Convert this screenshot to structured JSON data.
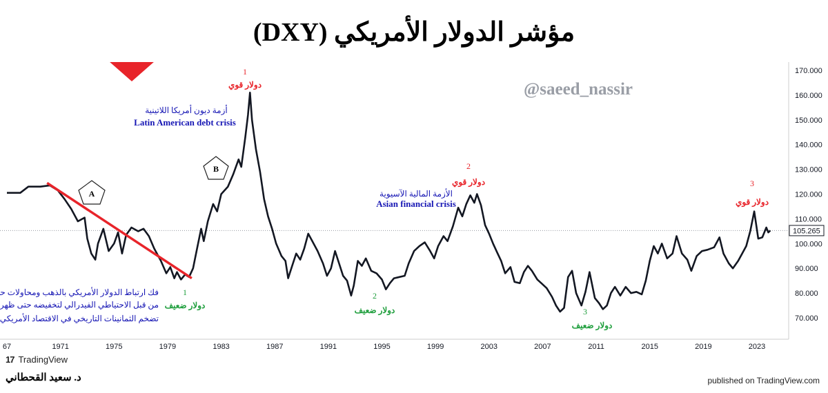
{
  "title": "مؤشر الدولار الأمريكي (DXY)",
  "watermark": "@saeed_nassir",
  "footer": {
    "brand": "TradingView",
    "author": "د. سعيد القحطاني",
    "published": "published on TradingView.com"
  },
  "colors": {
    "line": "#131722",
    "trend": "#e8242a",
    "arrow": "#e8242a",
    "strong": "#e8242a",
    "weak": "#1e9e3c",
    "blue": "#1616b4"
  },
  "annotations": {
    "s1_num": "1",
    "s1_text": "دولار قوي",
    "s2_num": "2",
    "s2_text": "دولار قوي",
    "s3_num": "3",
    "s3_text": "دولار قوي",
    "w1_num": "1",
    "w1_text": "دولار ضعيف",
    "w2_num": "2",
    "w2_text": "دولار ضعيف",
    "w3_num": "3",
    "w3_text": "دولار ضعيف",
    "latam_ar": "أزمة ديون أمريكا اللاتينية",
    "latam_en": "Latin American debt crisis",
    "asia_ar": "الأزمة المالية الآسيوية",
    "asia_en": "Asian financial crisis",
    "note_line1": "فك ارتباط الدولار الأمريكي بالذهب ومحاولات حثيثة",
    "note_line2": "من قبل الاحتياطي الفيدرالي لتخفيضه حتى ظهر",
    "note_line3": "تضخم الثمانينات التاريخي في الاقتصاد الأمريكي",
    "label_a": "A",
    "label_b": "B"
  },
  "chart_data": {
    "type": "line",
    "title": "مؤشر الدولار الأمريكي (DXY)",
    "xlabel": "",
    "ylabel": "",
    "x_ticks": [
      "67",
      "1971",
      "1975",
      "1979",
      "1983",
      "1987",
      "1991",
      "1995",
      "1999",
      "2003",
      "2007",
      "2011",
      "2015",
      "2019",
      "2023"
    ],
    "y_ticks": [
      "70.000",
      "80.000",
      "90.000",
      "100.000",
      "110.000",
      "120.000",
      "130.000",
      "140.000",
      "150.000",
      "160.000",
      "170.000"
    ],
    "xlim": [
      1967,
      2025
    ],
    "ylim": [
      65,
      172
    ],
    "last_value": "105.265",
    "series": [
      {
        "values": [
          [
            1967.0,
            120.5
          ],
          [
            1968.0,
            120.5
          ],
          [
            1968.6,
            123.0
          ],
          [
            1969.5,
            123.0
          ],
          [
            1970.2,
            123.5
          ],
          [
            1970.8,
            121.5
          ],
          [
            1971.3,
            118.0
          ],
          [
            1971.8,
            114.0
          ],
          [
            1972.3,
            109.0
          ],
          [
            1972.8,
            110.5
          ],
          [
            1973.0,
            102.0
          ],
          [
            1973.3,
            96.0
          ],
          [
            1973.6,
            93.5
          ],
          [
            1973.8,
            100.0
          ],
          [
            1974.2,
            106.0
          ],
          [
            1974.6,
            97.0
          ],
          [
            1975.0,
            100.0
          ],
          [
            1975.3,
            104.5
          ],
          [
            1975.6,
            96.0
          ],
          [
            1975.9,
            103.5
          ],
          [
            1976.3,
            106.5
          ],
          [
            1976.8,
            105.0
          ],
          [
            1977.2,
            106.0
          ],
          [
            1977.6,
            103.0
          ],
          [
            1978.0,
            98.0
          ],
          [
            1978.5,
            93.0
          ],
          [
            1978.9,
            88.0
          ],
          [
            1979.2,
            90.5
          ],
          [
            1979.5,
            86.0
          ],
          [
            1979.7,
            88.5
          ],
          [
            1980.0,
            85.5
          ],
          [
            1980.3,
            87.5
          ],
          [
            1980.6,
            86.5
          ],
          [
            1980.9,
            90.0
          ],
          [
            1981.2,
            98.0
          ],
          [
            1981.5,
            106.0
          ],
          [
            1981.7,
            101.0
          ],
          [
            1982.0,
            109.0
          ],
          [
            1982.4,
            116.0
          ],
          [
            1982.7,
            113.0
          ],
          [
            1983.0,
            120.0
          ],
          [
            1983.5,
            123.0
          ],
          [
            1983.9,
            128.0
          ],
          [
            1984.3,
            134.0
          ],
          [
            1984.5,
            131.0
          ],
          [
            1984.8,
            143.0
          ],
          [
            1985.0,
            152.0
          ],
          [
            1985.15,
            161.0
          ],
          [
            1985.3,
            150.0
          ],
          [
            1985.6,
            138.0
          ],
          [
            1985.9,
            129.0
          ],
          [
            1986.2,
            118.0
          ],
          [
            1986.5,
            111.0
          ],
          [
            1986.8,
            106.0
          ],
          [
            1987.1,
            100.0
          ],
          [
            1987.5,
            95.0
          ],
          [
            1987.8,
            93.0
          ],
          [
            1988.0,
            86.0
          ],
          [
            1988.3,
            91.0
          ],
          [
            1988.6,
            96.0
          ],
          [
            1988.9,
            93.5
          ],
          [
            1989.2,
            98.0
          ],
          [
            1989.5,
            104.0
          ],
          [
            1989.8,
            101.0
          ],
          [
            1990.2,
            97.0
          ],
          [
            1990.6,
            92.0
          ],
          [
            1990.9,
            87.0
          ],
          [
            1991.2,
            90.0
          ],
          [
            1991.5,
            97.0
          ],
          [
            1991.8,
            92.0
          ],
          [
            1992.1,
            87.0
          ],
          [
            1992.4,
            85.0
          ],
          [
            1992.7,
            79.0
          ],
          [
            1992.9,
            83.0
          ],
          [
            1993.2,
            93.0
          ],
          [
            1993.5,
            91.0
          ],
          [
            1993.8,
            94.0
          ],
          [
            1994.2,
            89.0
          ],
          [
            1994.6,
            88.0
          ],
          [
            1995.0,
            85.5
          ],
          [
            1995.3,
            81.5
          ],
          [
            1995.6,
            84.0
          ],
          [
            1995.9,
            86.0
          ],
          [
            1996.3,
            86.5
          ],
          [
            1996.7,
            87.0
          ],
          [
            1997.0,
            92.0
          ],
          [
            1997.4,
            97.0
          ],
          [
            1997.8,
            99.0
          ],
          [
            1998.2,
            100.5
          ],
          [
            1998.6,
            97.0
          ],
          [
            1998.9,
            94.0
          ],
          [
            1999.2,
            99.0
          ],
          [
            1999.6,
            103.0
          ],
          [
            1999.9,
            101.0
          ],
          [
            2000.3,
            107.0
          ],
          [
            2000.7,
            114.5
          ],
          [
            2001.0,
            111.0
          ],
          [
            2001.3,
            116.0
          ],
          [
            2001.6,
            119.5
          ],
          [
            2001.9,
            116.5
          ],
          [
            2002.1,
            120.0
          ],
          [
            2002.4,
            115.5
          ],
          [
            2002.7,
            107.5
          ],
          [
            2003.0,
            104.0
          ],
          [
            2003.3,
            100.0
          ],
          [
            2003.6,
            96.5
          ],
          [
            2003.9,
            93.0
          ],
          [
            2004.2,
            88.0
          ],
          [
            2004.6,
            90.5
          ],
          [
            2004.9,
            84.5
          ],
          [
            2005.3,
            84.0
          ],
          [
            2005.6,
            88.5
          ],
          [
            2005.9,
            91.0
          ],
          [
            2006.2,
            89.0
          ],
          [
            2006.6,
            85.5
          ],
          [
            2006.9,
            84.0
          ],
          [
            2007.3,
            82.0
          ],
          [
            2007.7,
            78.5
          ],
          [
            2008.0,
            75.0
          ],
          [
            2008.3,
            72.5
          ],
          [
            2008.6,
            74.0
          ],
          [
            2008.9,
            86.5
          ],
          [
            2009.2,
            89.0
          ],
          [
            2009.5,
            80.0
          ],
          [
            2009.9,
            75.0
          ],
          [
            2010.2,
            80.5
          ],
          [
            2010.5,
            88.5
          ],
          [
            2010.9,
            78.0
          ],
          [
            2011.2,
            76.0
          ],
          [
            2011.5,
            73.5
          ],
          [
            2011.8,
            75.0
          ],
          [
            2012.1,
            80.0
          ],
          [
            2012.4,
            82.5
          ],
          [
            2012.8,
            79.0
          ],
          [
            2013.2,
            82.5
          ],
          [
            2013.6,
            80.0
          ],
          [
            2014.0,
            80.5
          ],
          [
            2014.4,
            79.5
          ],
          [
            2014.7,
            85.0
          ],
          [
            2015.0,
            93.0
          ],
          [
            2015.3,
            99.0
          ],
          [
            2015.6,
            96.0
          ],
          [
            2015.9,
            100.0
          ],
          [
            2016.3,
            94.0
          ],
          [
            2016.7,
            96.0
          ],
          [
            2017.0,
            103.0
          ],
          [
            2017.4,
            96.0
          ],
          [
            2017.8,
            93.5
          ],
          [
            2018.1,
            89.0
          ],
          [
            2018.5,
            95.0
          ],
          [
            2018.9,
            97.0
          ],
          [
            2019.3,
            97.5
          ],
          [
            2019.8,
            98.5
          ],
          [
            2020.2,
            102.5
          ],
          [
            2020.5,
            96.0
          ],
          [
            2020.9,
            92.0
          ],
          [
            2021.2,
            90.0
          ],
          [
            2021.6,
            93.0
          ],
          [
            2021.9,
            96.0
          ],
          [
            2022.2,
            99.0
          ],
          [
            2022.5,
            105.0
          ],
          [
            2022.8,
            113.0
          ],
          [
            2023.1,
            102.0
          ],
          [
            2023.4,
            102.5
          ],
          [
            2023.7,
            106.5
          ],
          [
            2023.85,
            104.5
          ],
          [
            2024.0,
            105.3
          ]
        ]
      }
    ],
    "trendline": [
      [
        1970.0,
        124.5
      ],
      [
        1980.8,
        86.0
      ]
    ],
    "grid": false,
    "legend": "none"
  }
}
